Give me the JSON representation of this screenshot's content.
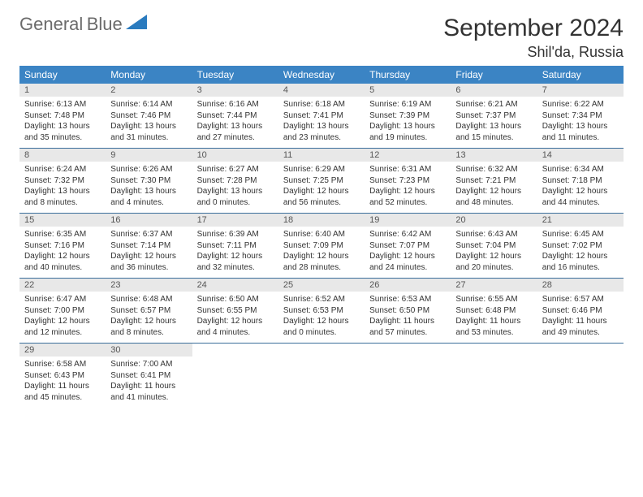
{
  "brand": {
    "word1": "General",
    "word2": "Blue",
    "triangle_color": "#2a7bbf"
  },
  "title": "September 2024",
  "location": "Shil'da, Russia",
  "header_bg": "#3b84c4",
  "daynum_bg": "#e8e8e8",
  "row_divider": "#3b6e9b",
  "day_names": [
    "Sunday",
    "Monday",
    "Tuesday",
    "Wednesday",
    "Thursday",
    "Friday",
    "Saturday"
  ],
  "weeks": [
    [
      {
        "n": "1",
        "sr": "6:13 AM",
        "ss": "7:48 PM",
        "dl": "13 hours and 35 minutes."
      },
      {
        "n": "2",
        "sr": "6:14 AM",
        "ss": "7:46 PM",
        "dl": "13 hours and 31 minutes."
      },
      {
        "n": "3",
        "sr": "6:16 AM",
        "ss": "7:44 PM",
        "dl": "13 hours and 27 minutes."
      },
      {
        "n": "4",
        "sr": "6:18 AM",
        "ss": "7:41 PM",
        "dl": "13 hours and 23 minutes."
      },
      {
        "n": "5",
        "sr": "6:19 AM",
        "ss": "7:39 PM",
        "dl": "13 hours and 19 minutes."
      },
      {
        "n": "6",
        "sr": "6:21 AM",
        "ss": "7:37 PM",
        "dl": "13 hours and 15 minutes."
      },
      {
        "n": "7",
        "sr": "6:22 AM",
        "ss": "7:34 PM",
        "dl": "13 hours and 11 minutes."
      }
    ],
    [
      {
        "n": "8",
        "sr": "6:24 AM",
        "ss": "7:32 PM",
        "dl": "13 hours and 8 minutes."
      },
      {
        "n": "9",
        "sr": "6:26 AM",
        "ss": "7:30 PM",
        "dl": "13 hours and 4 minutes."
      },
      {
        "n": "10",
        "sr": "6:27 AM",
        "ss": "7:28 PM",
        "dl": "13 hours and 0 minutes."
      },
      {
        "n": "11",
        "sr": "6:29 AM",
        "ss": "7:25 PM",
        "dl": "12 hours and 56 minutes."
      },
      {
        "n": "12",
        "sr": "6:31 AM",
        "ss": "7:23 PM",
        "dl": "12 hours and 52 minutes."
      },
      {
        "n": "13",
        "sr": "6:32 AM",
        "ss": "7:21 PM",
        "dl": "12 hours and 48 minutes."
      },
      {
        "n": "14",
        "sr": "6:34 AM",
        "ss": "7:18 PM",
        "dl": "12 hours and 44 minutes."
      }
    ],
    [
      {
        "n": "15",
        "sr": "6:35 AM",
        "ss": "7:16 PM",
        "dl": "12 hours and 40 minutes."
      },
      {
        "n": "16",
        "sr": "6:37 AM",
        "ss": "7:14 PM",
        "dl": "12 hours and 36 minutes."
      },
      {
        "n": "17",
        "sr": "6:39 AM",
        "ss": "7:11 PM",
        "dl": "12 hours and 32 minutes."
      },
      {
        "n": "18",
        "sr": "6:40 AM",
        "ss": "7:09 PM",
        "dl": "12 hours and 28 minutes."
      },
      {
        "n": "19",
        "sr": "6:42 AM",
        "ss": "7:07 PM",
        "dl": "12 hours and 24 minutes."
      },
      {
        "n": "20",
        "sr": "6:43 AM",
        "ss": "7:04 PM",
        "dl": "12 hours and 20 minutes."
      },
      {
        "n": "21",
        "sr": "6:45 AM",
        "ss": "7:02 PM",
        "dl": "12 hours and 16 minutes."
      }
    ],
    [
      {
        "n": "22",
        "sr": "6:47 AM",
        "ss": "7:00 PM",
        "dl": "12 hours and 12 minutes."
      },
      {
        "n": "23",
        "sr": "6:48 AM",
        "ss": "6:57 PM",
        "dl": "12 hours and 8 minutes."
      },
      {
        "n": "24",
        "sr": "6:50 AM",
        "ss": "6:55 PM",
        "dl": "12 hours and 4 minutes."
      },
      {
        "n": "25",
        "sr": "6:52 AM",
        "ss": "6:53 PM",
        "dl": "12 hours and 0 minutes."
      },
      {
        "n": "26",
        "sr": "6:53 AM",
        "ss": "6:50 PM",
        "dl": "11 hours and 57 minutes."
      },
      {
        "n": "27",
        "sr": "6:55 AM",
        "ss": "6:48 PM",
        "dl": "11 hours and 53 minutes."
      },
      {
        "n": "28",
        "sr": "6:57 AM",
        "ss": "6:46 PM",
        "dl": "11 hours and 49 minutes."
      }
    ],
    [
      {
        "n": "29",
        "sr": "6:58 AM",
        "ss": "6:43 PM",
        "dl": "11 hours and 45 minutes."
      },
      {
        "n": "30",
        "sr": "7:00 AM",
        "ss": "6:41 PM",
        "dl": "11 hours and 41 minutes."
      },
      null,
      null,
      null,
      null,
      null
    ]
  ],
  "labels": {
    "sunrise": "Sunrise: ",
    "sunset": "Sunset: ",
    "daylight": "Daylight: "
  }
}
